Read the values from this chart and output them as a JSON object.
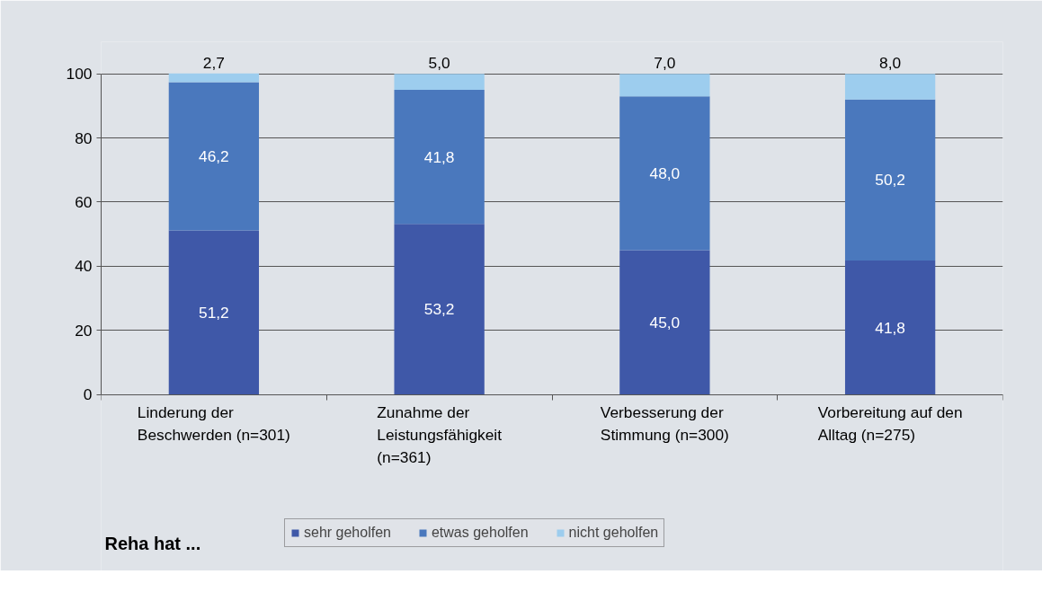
{
  "chart_data": {
    "type": "bar",
    "stacked": true,
    "categories": [
      "Linderung der Beschwerden (n=301)",
      "Zunahme der Leistungsfähigkeit (n=361)",
      "Verbesserung der Stimmung (n=300)",
      "Vorbereitung auf den Alltag (n=275)"
    ],
    "series": [
      {
        "name": "sehr geholfen",
        "color": "#3f58a8",
        "values": [
          51.2,
          53.2,
          45.0,
          41.8
        ],
        "value_labels": [
          "51,2",
          "53,2",
          "45,0",
          "41,8"
        ]
      },
      {
        "name": "etwas geholfen",
        "color": "#4a78bd",
        "values": [
          46.2,
          41.8,
          48.0,
          50.2
        ],
        "value_labels": [
          "46,2",
          "41,8",
          "48,0",
          "50,2"
        ]
      },
      {
        "name": "nicht geholfen",
        "color": "#9dcdee",
        "values": [
          2.7,
          5.0,
          7.0,
          8.0
        ],
        "value_labels": [
          "2,7",
          "5,0",
          "7,0",
          "8,0"
        ]
      }
    ],
    "legend_title": "Reha hat ...",
    "ylim": [
      0,
      100
    ],
    "yticks": [
      0,
      20,
      40,
      60,
      80,
      100
    ],
    "grid": "y",
    "legend": "bottom"
  }
}
